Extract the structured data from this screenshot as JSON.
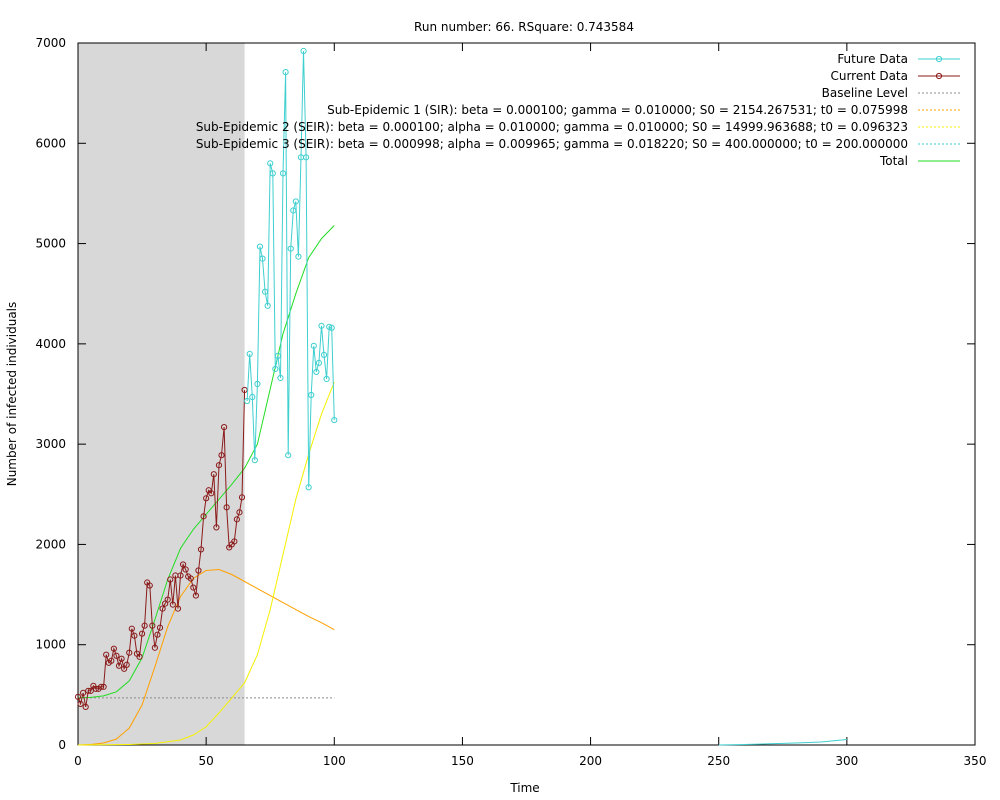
{
  "chart_data": {
    "type": "line",
    "title": "Run number: 66. RSquare: 0.743584",
    "xlabel": "Time",
    "ylabel": "Number of infected individuals",
    "xlim": [
      0,
      350
    ],
    "ylim": [
      0,
      7000
    ],
    "xticks": [
      0,
      50,
      100,
      150,
      200,
      250,
      300,
      350
    ],
    "yticks": [
      0,
      1000,
      2000,
      3000,
      4000,
      5000,
      6000,
      7000
    ],
    "shaded_region": {
      "x_from": 0,
      "x_to": 65,
      "color": "#d8d8d8"
    },
    "legend_position": "top-right",
    "series": [
      {
        "name": "Future Data",
        "color": "#3fcfcf",
        "style": "line-points",
        "x": [
          66,
          67,
          68,
          69,
          70,
          71,
          72,
          73,
          74,
          75,
          76,
          77,
          78,
          79,
          80,
          81,
          82,
          83,
          84,
          85,
          86,
          87,
          88,
          89,
          90,
          91,
          92,
          93,
          94,
          95,
          96,
          97,
          98,
          99,
          100
        ],
        "y": [
          3430,
          3900,
          3470,
          2840,
          3600,
          4970,
          4850,
          4520,
          4380,
          5800,
          5700,
          3750,
          3880,
          3660,
          5700,
          6710,
          2890,
          4950,
          5330,
          5420,
          4870,
          5860,
          6920,
          5860,
          2570,
          3490,
          3980,
          3720,
          3810,
          4180,
          3890,
          3650,
          4170,
          4160,
          3240
        ]
      },
      {
        "name": "Current Data",
        "color": "#8b1a1a",
        "style": "line-points",
        "x": [
          0,
          1,
          2,
          3,
          4,
          5,
          6,
          7,
          8,
          9,
          10,
          11,
          12,
          13,
          14,
          15,
          16,
          17,
          18,
          19,
          20,
          21,
          22,
          23,
          24,
          25,
          26,
          27,
          28,
          29,
          30,
          31,
          32,
          33,
          34,
          35,
          36,
          37,
          38,
          39,
          40,
          41,
          42,
          43,
          44,
          45,
          46,
          47,
          48,
          49,
          50,
          51,
          52,
          53,
          54,
          55,
          56,
          57,
          58,
          59,
          60,
          61,
          62,
          63,
          64,
          65
        ],
        "y": [
          480,
          410,
          520,
          380,
          540,
          540,
          590,
          560,
          560,
          580,
          580,
          900,
          820,
          840,
          960,
          890,
          790,
          860,
          760,
          800,
          920,
          1160,
          1090,
          910,
          880,
          1110,
          1190,
          1620,
          1590,
          1190,
          970,
          1100,
          1170,
          1360,
          1410,
          1450,
          1650,
          1400,
          1690,
          1360,
          1690,
          1800,
          1750,
          1680,
          1660,
          1570,
          1490,
          1740,
          1950,
          2280,
          2460,
          2540,
          2510,
          2700,
          2170,
          2790,
          2890,
          3170,
          2370,
          1970,
          2000,
          2030,
          2250,
          2320,
          2470,
          3540
        ]
      },
      {
        "name": "Baseline Level",
        "color": "#8c8c8c",
        "style": "dotted",
        "x": [
          0,
          100
        ],
        "y": [
          470,
          470
        ]
      },
      {
        "name": "Sub-Epidemic 1 (SIR): beta = 0.000100; gamma = 0.010000; S0 = 2154.267531; t0 = 0.075998",
        "color": "#ffa000",
        "style": "line",
        "x": [
          0,
          5,
          10,
          15,
          20,
          25,
          30,
          35,
          40,
          45,
          50,
          55,
          60,
          65,
          70,
          75,
          80,
          85,
          90,
          95,
          100
        ],
        "y": [
          0,
          5,
          20,
          60,
          170,
          400,
          780,
          1180,
          1480,
          1660,
          1740,
          1750,
          1700,
          1630,
          1560,
          1490,
          1420,
          1350,
          1280,
          1220,
          1150
        ]
      },
      {
        "name": "Sub-Epidemic 2 (SEIR): beta = 0.000100; alpha = 0.010000; gamma = 0.010000; S0 = 14999.963688; t0 = 0.096323",
        "color": "#f5f000",
        "style": "line",
        "x": [
          0,
          10,
          20,
          30,
          40,
          45,
          50,
          55,
          60,
          65,
          70,
          75,
          80,
          85,
          90,
          95,
          100
        ],
        "y": [
          0,
          2,
          5,
          15,
          50,
          100,
          180,
          320,
          470,
          620,
          900,
          1350,
          1900,
          2450,
          2900,
          3300,
          3620
        ]
      },
      {
        "name": "Sub-Epidemic 3 (SEIR): beta = 0.000998; alpha = 0.009965; gamma = 0.018220; S0 = 400.000000; t0 = 200.000000",
        "color": "#3fcfcf",
        "style": "line",
        "x": [
          250,
          260,
          270,
          280,
          290,
          300
        ],
        "y": [
          0,
          5,
          12,
          20,
          30,
          55
        ]
      },
      {
        "name": "Total",
        "color": "#22dd22",
        "style": "line",
        "x": [
          0,
          5,
          10,
          15,
          20,
          25,
          30,
          35,
          40,
          45,
          50,
          55,
          60,
          65,
          70,
          75,
          80,
          85,
          90,
          95,
          100
        ],
        "y": [
          470,
          475,
          490,
          530,
          640,
          870,
          1250,
          1650,
          1960,
          2150,
          2300,
          2450,
          2600,
          2760,
          3000,
          3550,
          4100,
          4500,
          4860,
          5050,
          5180
        ]
      }
    ]
  }
}
